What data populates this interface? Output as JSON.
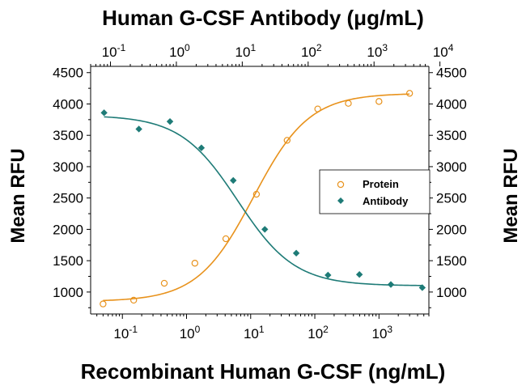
{
  "colors": {
    "protein": "#E8921C",
    "antibody": "#1E7B77",
    "axis": "#000000"
  },
  "chart_data": {
    "type": "scatter",
    "title_top": "Human G-CSF Antibody (μg/mL)",
    "xlabel": "Recombinant Human G-CSF (ng/mL)",
    "ylabel_left": "Mean RFU",
    "ylabel_right": "Mean RFU",
    "x_scale": "log",
    "xlim": [
      0.032,
      6000
    ],
    "ylim": [
      650,
      4600
    ],
    "yticks": [
      1000,
      1500,
      2000,
      2500,
      3000,
      3500,
      4000,
      4500
    ],
    "ytick_labels": [
      "1000",
      "1500",
      "2000",
      "2500",
      "3000",
      "3500",
      "4000",
      "4500"
    ],
    "x_bottom_ticks": [
      {
        "value": 0.1,
        "base": "10",
        "exp": "-1"
      },
      {
        "value": 1,
        "base": "10",
        "exp": "0"
      },
      {
        "value": 10,
        "base": "10",
        "exp": "1"
      },
      {
        "value": 100,
        "base": "10",
        "exp": "2"
      },
      {
        "value": 1000,
        "base": "10",
        "exp": "3"
      }
    ],
    "x_top_ticks": [
      {
        "value": 0.1,
        "base": "10",
        "exp": "-1"
      },
      {
        "value": 1,
        "base": "10",
        "exp": "0"
      },
      {
        "value": 10,
        "base": "10",
        "exp": "1"
      },
      {
        "value": 100,
        "base": "10",
        "exp": "2"
      },
      {
        "value": 1000,
        "base": "10",
        "exp": "3"
      },
      {
        "value": 10000,
        "base": "10",
        "exp": "4"
      }
    ],
    "xlim_top": [
      0.05,
      6800
    ],
    "legend_position": "center-right",
    "series": [
      {
        "name": "Protein",
        "marker": "open-circle",
        "x": [
          0.05,
          0.15,
          0.45,
          1.35,
          4.1,
          12.3,
          37,
          111,
          333,
          1000,
          3000
        ],
        "y": [
          810,
          870,
          1140,
          1460,
          1850,
          2560,
          3420,
          3920,
          4010,
          4040,
          4170
        ],
        "fit": {
          "bottom": 850,
          "top": 4170,
          "ec50": 11,
          "hill": 1.0
        }
      },
      {
        "name": "Antibody",
        "marker": "filled-diamond",
        "x_top": [
          0.08,
          0.27,
          0.8,
          2.4,
          7.3,
          22,
          66,
          200,
          600,
          1800,
          5400
        ],
        "y": [
          3860,
          3600,
          3720,
          3300,
          2780,
          2000,
          1620,
          1270,
          1280,
          1120,
          1070
        ],
        "fit": {
          "bottom": 1100,
          "top": 3820,
          "ic50": 8.5,
          "hill": 1.0
        }
      }
    ]
  }
}
